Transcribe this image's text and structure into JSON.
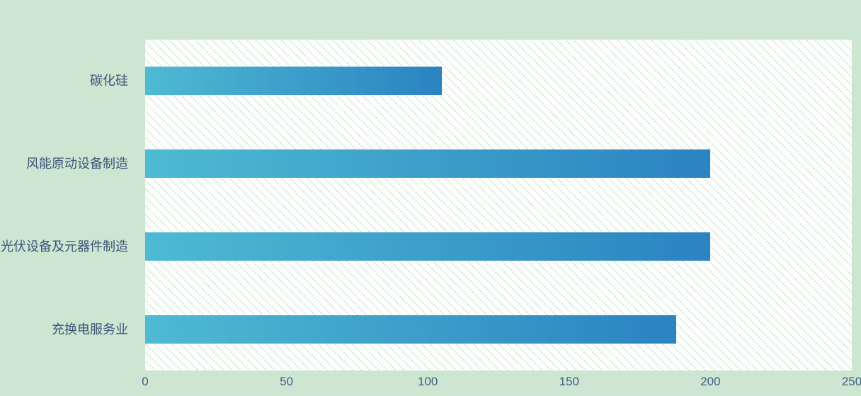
{
  "chart_data": {
    "type": "bar",
    "orientation": "horizontal",
    "title": "",
    "categories": [
      "碳化硅",
      "风能原动设备制造",
      "光伏设备及元器件制造",
      "充换电服务业"
    ],
    "values": [
      105,
      200,
      200,
      188
    ],
    "xlabel": "",
    "ylabel": "",
    "xlim": [
      0,
      250
    ],
    "x_ticks": [
      "0",
      "50",
      "100",
      "150",
      "200",
      "250"
    ],
    "grid": false,
    "legend": null,
    "colors": {
      "page_background": "#cde6d2",
      "plot_background": "#fdfefd",
      "hatch": "#d6ead9",
      "bar_gradient_left": "#4EBAD3",
      "bar_gradient_right": "#2B83C1",
      "category_label": "#3d5479",
      "tick_label": "#3f5e84"
    }
  }
}
